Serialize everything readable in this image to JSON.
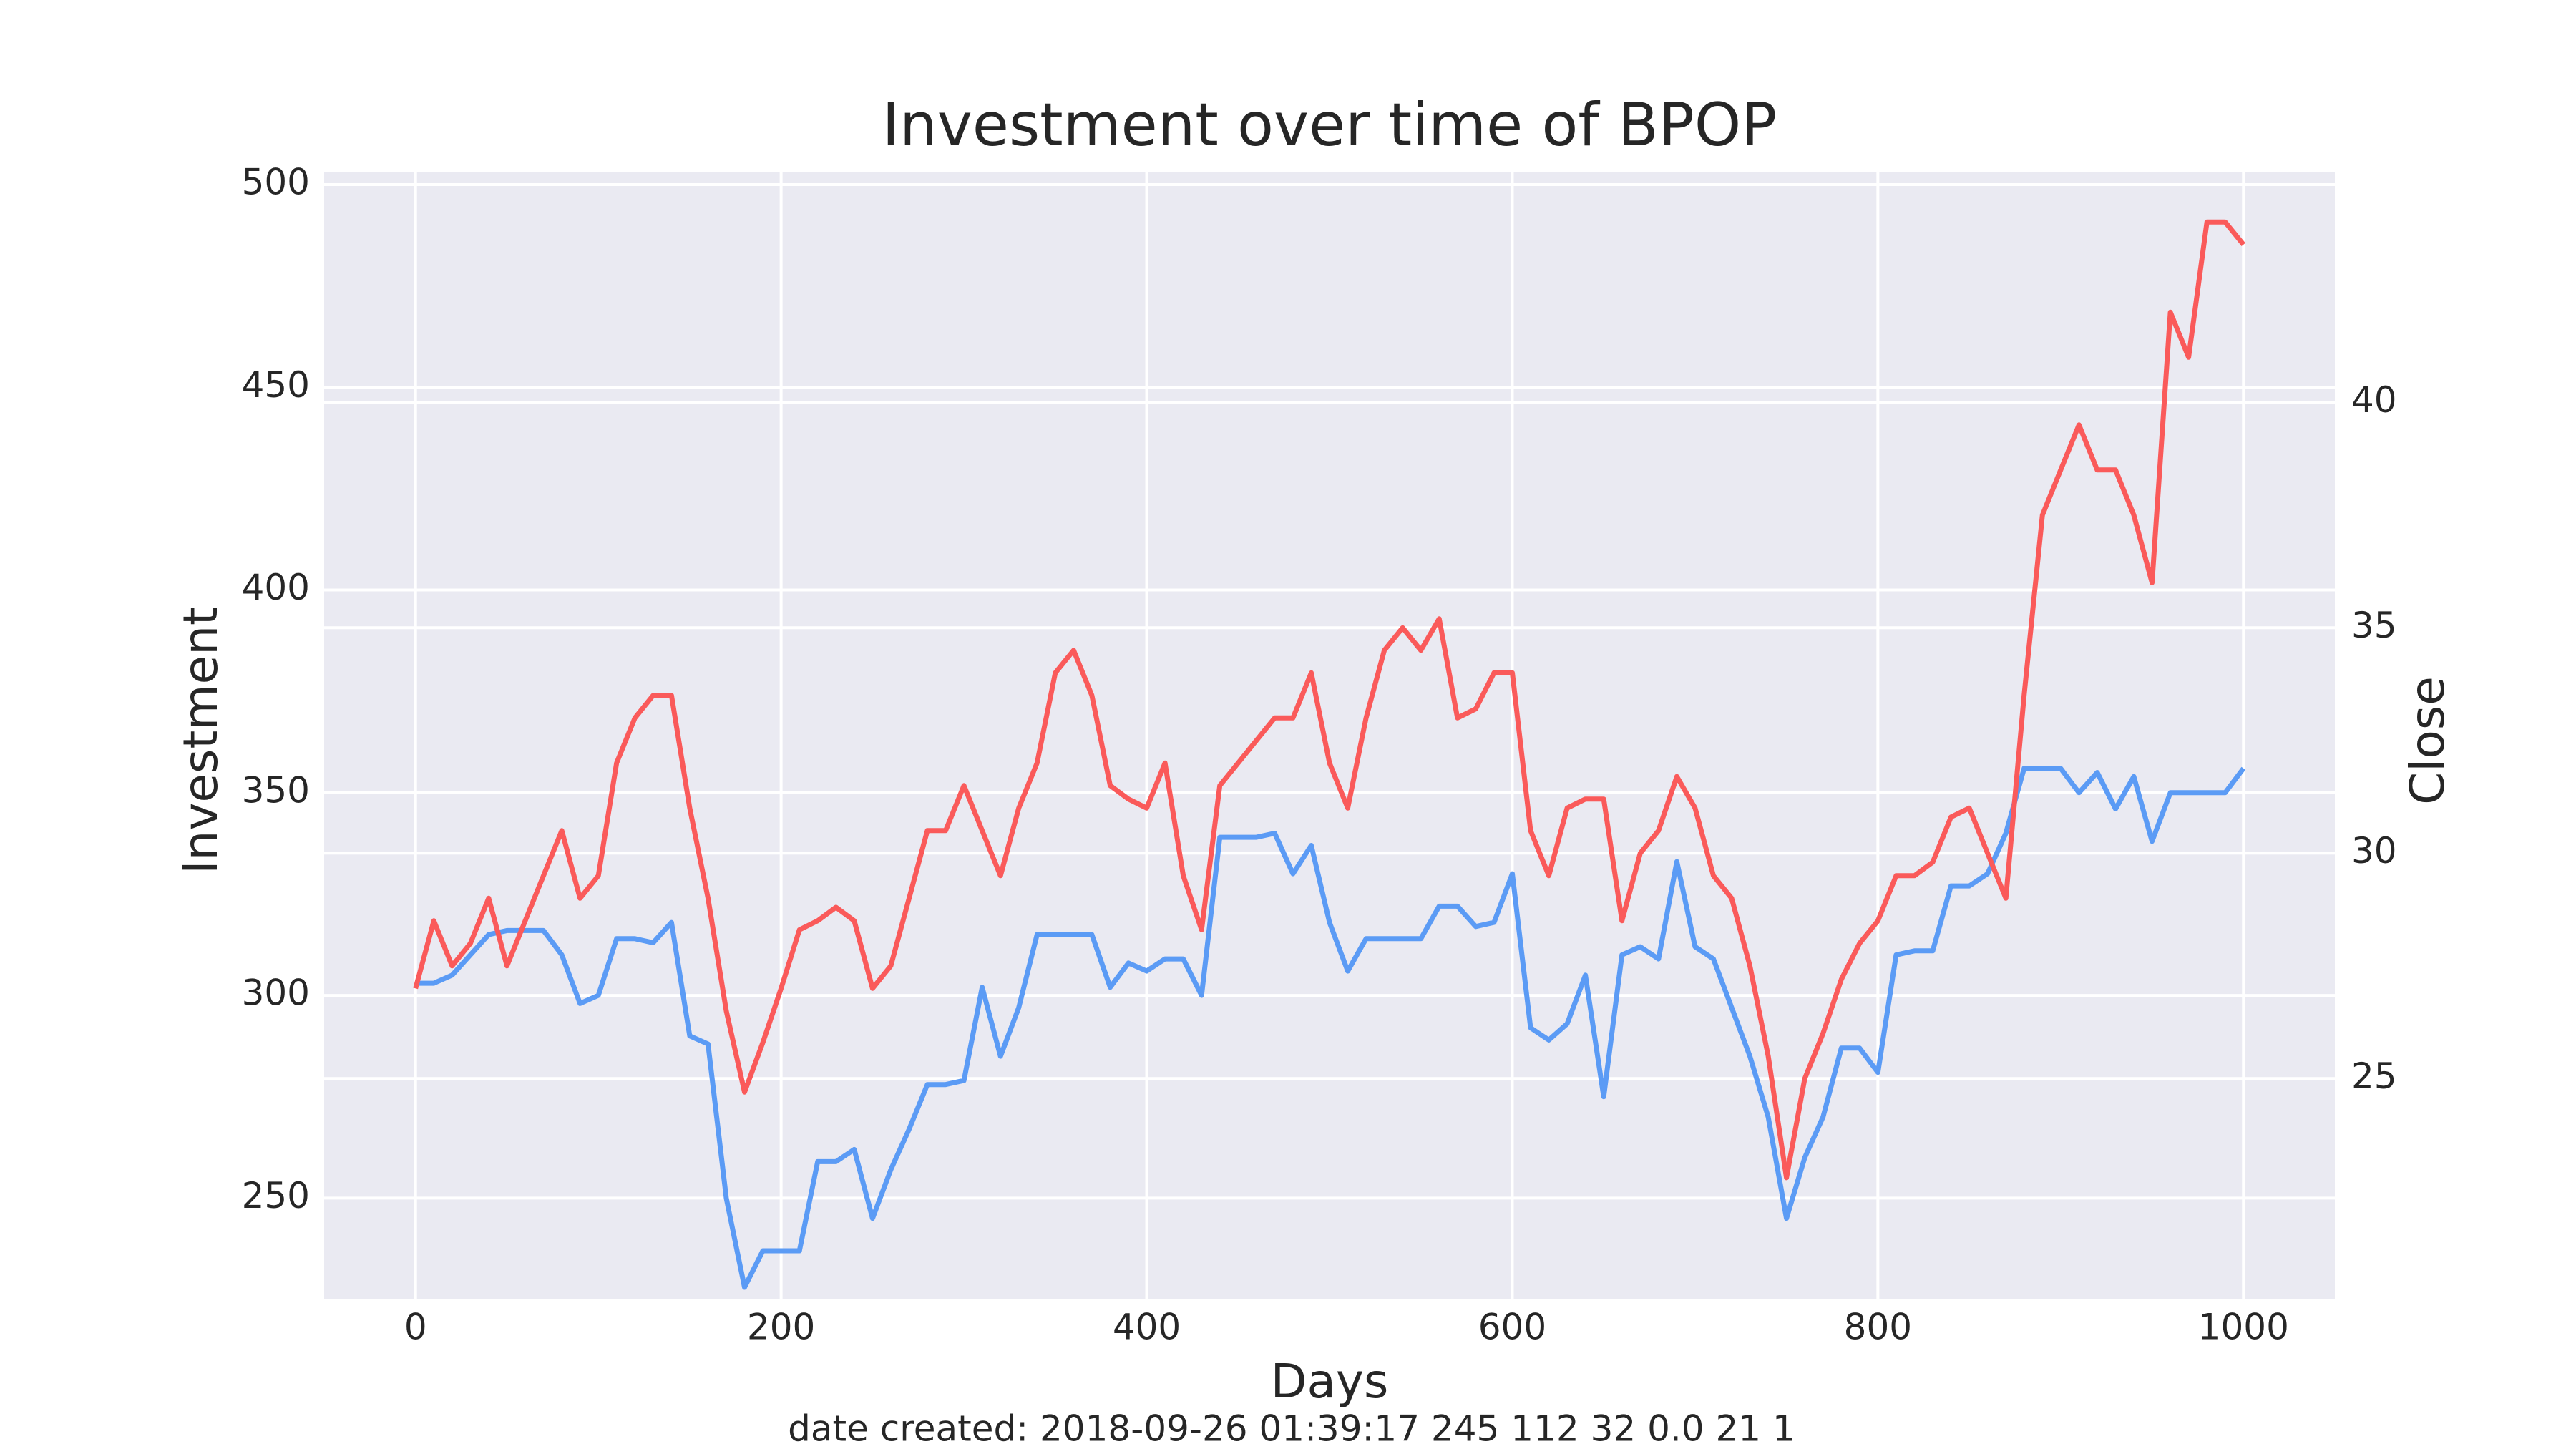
{
  "chart_data": {
    "type": "line",
    "title": "Investment over time of BPOP",
    "xlabel": "Days",
    "footnote": "date created: 2018-09-26 01:39:17 245 112 32 0.0 21 1",
    "x": [
      0,
      10,
      20,
      30,
      40,
      50,
      60,
      70,
      80,
      90,
      100,
      110,
      120,
      130,
      140,
      150,
      160,
      170,
      180,
      190,
      200,
      210,
      220,
      230,
      240,
      250,
      260,
      270,
      280,
      290,
      300,
      310,
      320,
      330,
      340,
      350,
      360,
      370,
      380,
      390,
      400,
      410,
      420,
      430,
      440,
      450,
      460,
      470,
      480,
      490,
      500,
      510,
      520,
      530,
      540,
      550,
      560,
      570,
      580,
      590,
      600,
      610,
      620,
      630,
      640,
      650,
      660,
      670,
      680,
      690,
      700,
      710,
      720,
      730,
      740,
      750,
      760,
      770,
      780,
      790,
      800,
      810,
      820,
      830,
      840,
      850,
      860,
      870,
      880,
      890,
      900,
      910,
      920,
      930,
      940,
      950,
      960,
      970,
      980,
      990,
      1000
    ],
    "series": [
      {
        "name": "Investment",
        "color": "#5b9bf5",
        "axis": "y",
        "values": [
          303,
          303,
          305,
          310,
          315,
          316,
          316,
          316,
          310,
          298,
          300,
          314,
          314,
          313,
          318,
          290,
          288,
          250,
          228,
          237,
          237,
          237,
          259,
          259,
          262,
          245,
          257,
          267,
          278,
          278,
          279,
          302,
          285,
          297,
          315,
          315,
          315,
          315,
          302,
          308,
          306,
          309,
          309,
          300,
          339,
          339,
          339,
          340,
          330,
          337,
          318,
          306,
          314,
          314,
          314,
          314,
          322,
          322,
          317,
          318,
          330,
          292,
          289,
          293,
          305,
          275,
          310,
          312,
          309,
          333,
          312,
          309,
          297,
          285,
          270,
          245,
          260,
          270,
          287,
          287,
          281,
          310,
          311,
          311,
          327,
          327,
          330,
          340,
          356,
          356,
          356,
          350,
          355,
          346,
          354,
          338,
          350,
          350,
          350,
          350,
          356
        ]
      },
      {
        "name": "Close",
        "color": "#fa5a5a",
        "axis": "y2",
        "values": [
          27,
          28.5,
          27.5,
          28,
          29,
          27.5,
          28.5,
          29.5,
          30.5,
          29,
          29.5,
          32,
          33,
          33.5,
          33.5,
          31,
          29,
          26.5,
          24.7,
          25.8,
          27,
          28.3,
          28.5,
          28.8,
          28.5,
          27,
          27.5,
          29,
          30.5,
          30.5,
          31.5,
          30.5,
          29.5,
          31,
          32,
          34,
          34.5,
          33.5,
          31.5,
          31.2,
          31,
          32,
          29.5,
          28.3,
          31.5,
          32,
          32.5,
          33,
          33,
          34,
          32,
          31,
          33,
          34.5,
          35,
          34.5,
          35.2,
          33,
          33.2,
          34,
          34,
          30.5,
          29.5,
          31,
          31.2,
          31.2,
          28.5,
          30,
          30.5,
          31.7,
          31,
          29.5,
          29,
          27.5,
          25.5,
          22.8,
          25,
          26,
          27.2,
          28,
          28.5,
          29.5,
          29.5,
          29.8,
          30.8,
          31,
          30,
          29,
          33.5,
          37.5,
          38.5,
          39.5,
          38.5,
          38.5,
          37.5,
          36,
          42,
          41,
          44,
          44,
          43.5
        ]
      }
    ],
    "xlim": [
      -50,
      1050
    ],
    "xticks": [
      0,
      200,
      400,
      600,
      800,
      1000
    ],
    "ylim": [
      225,
      503
    ],
    "yticks": [
      250,
      300,
      350,
      400,
      450,
      500
    ],
    "y2lim": [
      20.1,
      45.1
    ],
    "y2ticks": [
      25,
      30,
      35,
      40
    ],
    "grid": true,
    "background": "#eaeaf2",
    "grid_color": "#ffffff"
  }
}
